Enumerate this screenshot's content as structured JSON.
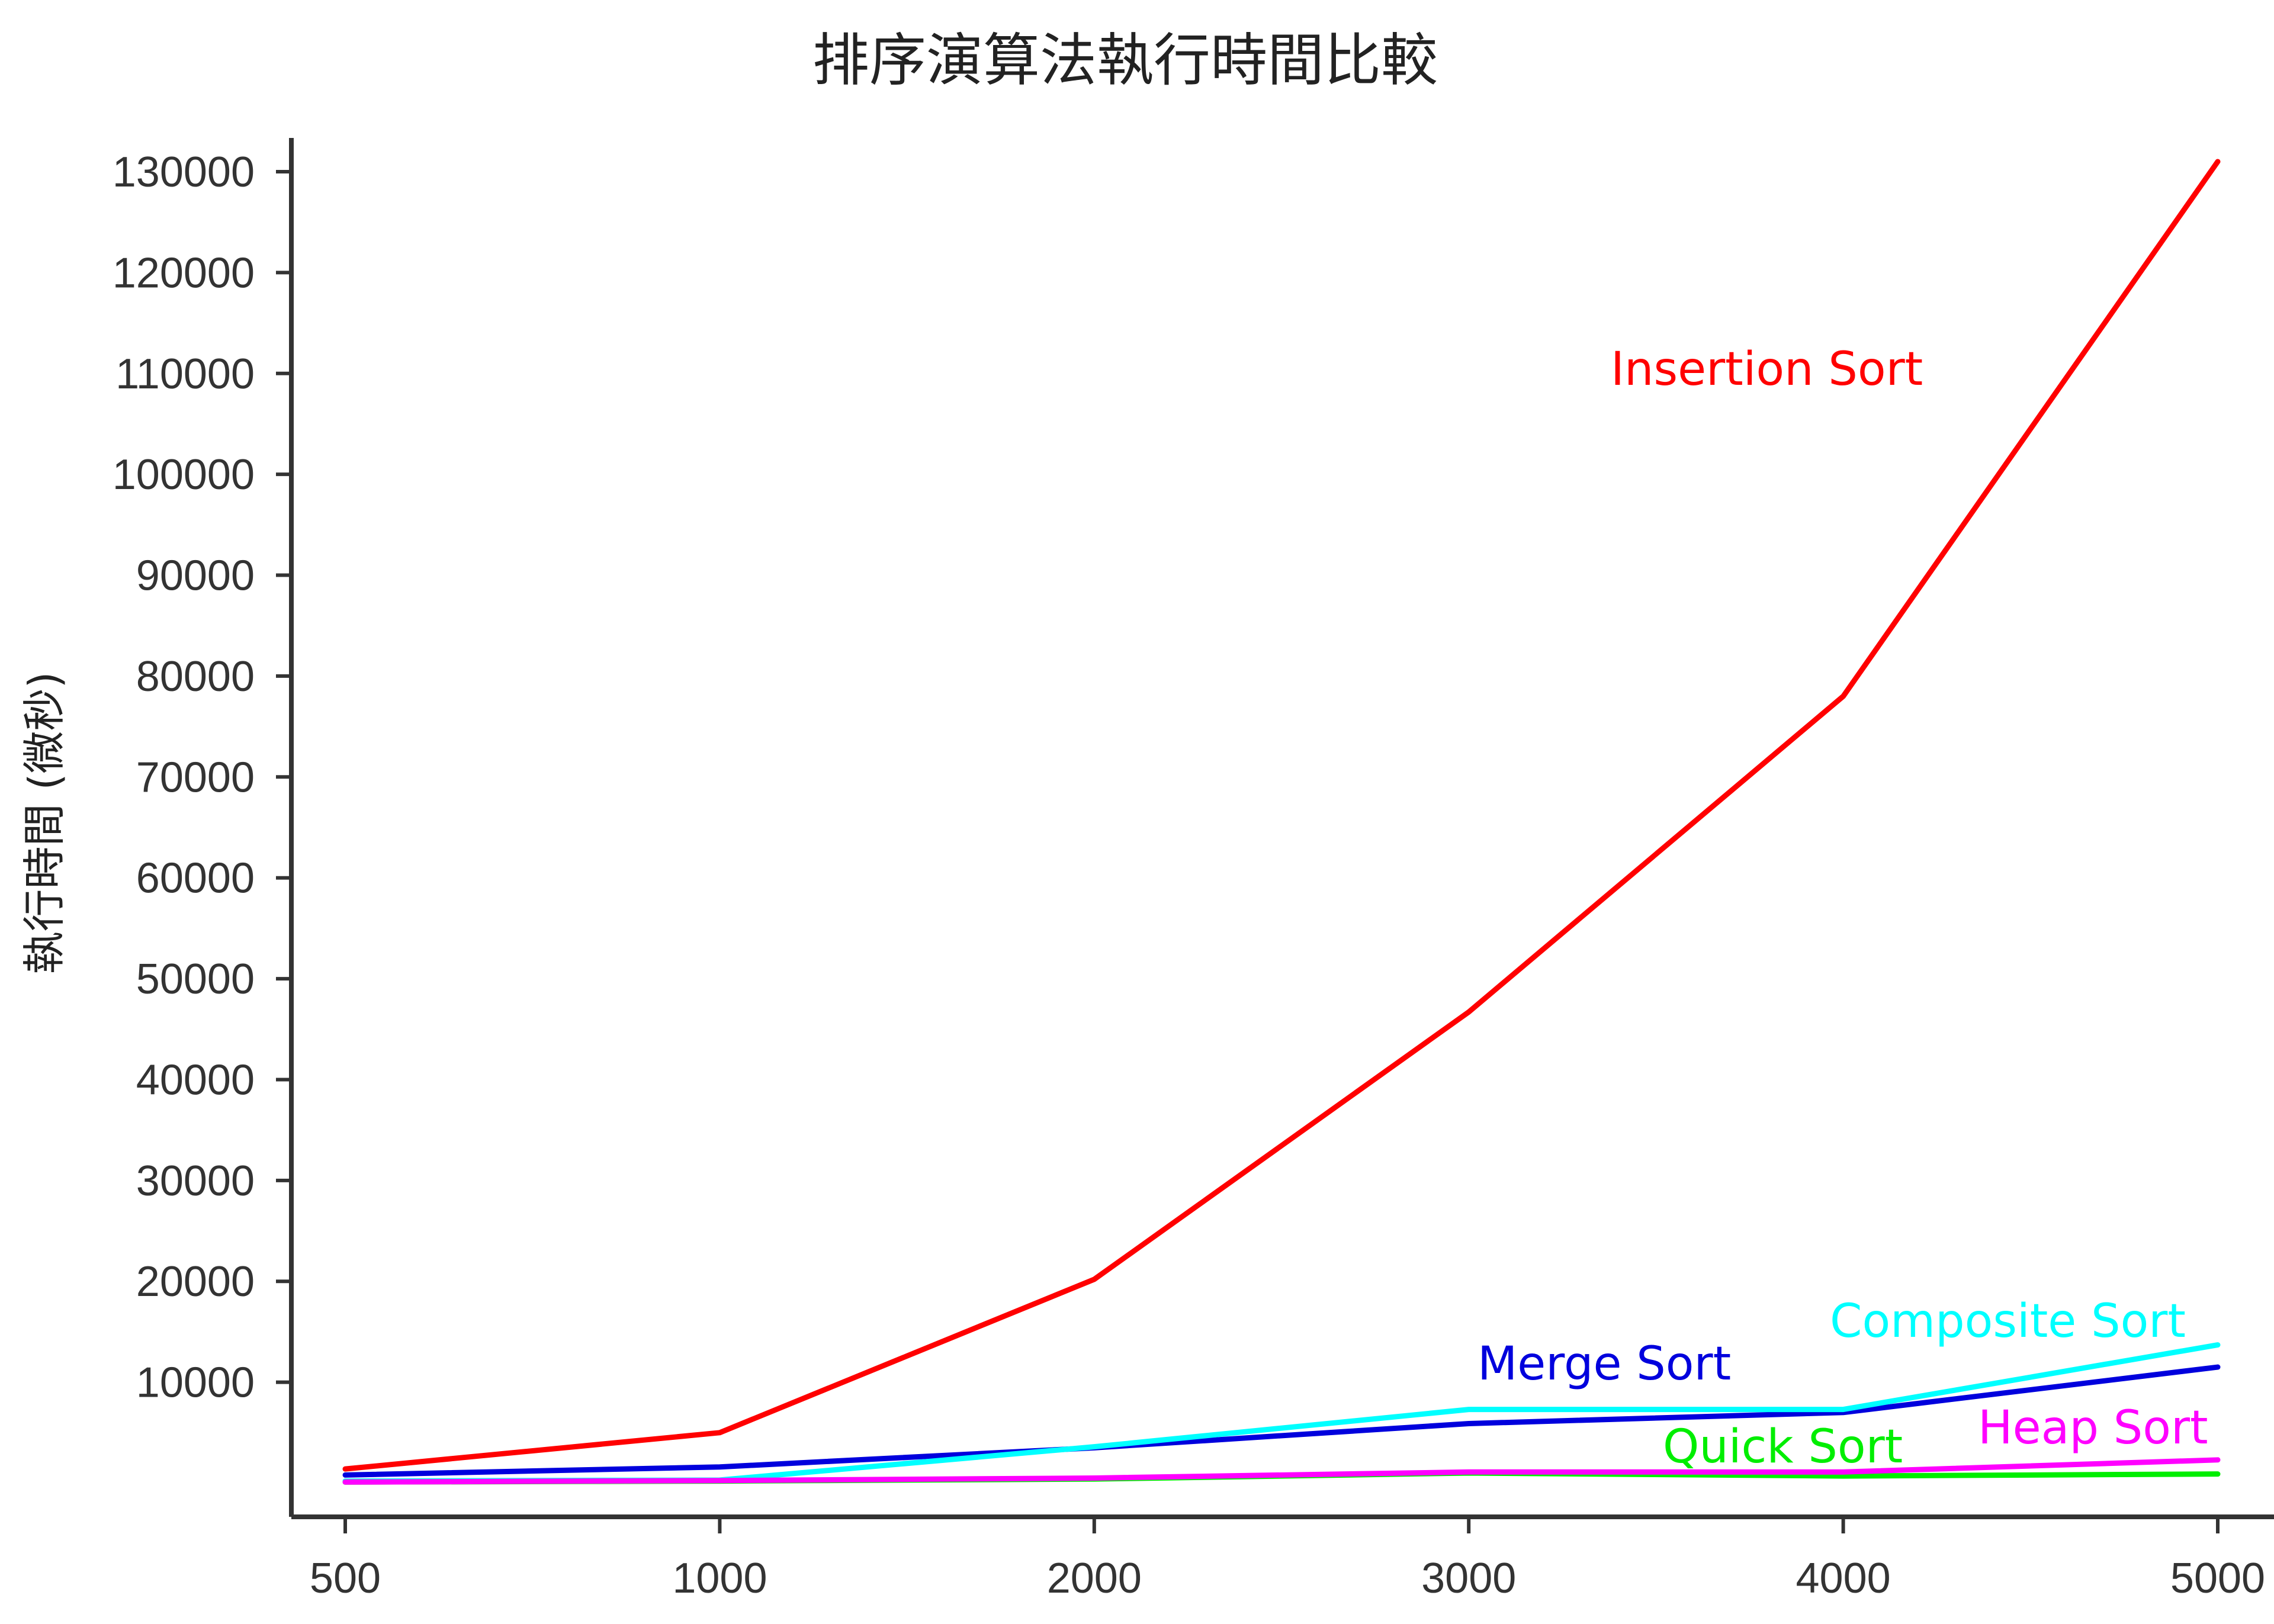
{
  "chart_data": {
    "type": "line",
    "title": "排序演算法執行時間比較",
    "xlabel": "",
    "ylabel": "執行時間 (微秒)",
    "categories": [
      "500",
      "1000",
      "2000",
      "3000",
      "4000",
      "5000"
    ],
    "y_ticks": [
      10000,
      20000,
      30000,
      40000,
      50000,
      60000,
      70000,
      80000,
      90000,
      100000,
      110000,
      120000,
      130000
    ],
    "ylim": [
      0,
      130000
    ],
    "grid": false,
    "legend": "inline labels",
    "series": [
      {
        "name": "Insertion Sort",
        "color": "#ff0000",
        "values": [
          1400,
          5000,
          20200,
          46700,
          78000,
          131000
        ]
      },
      {
        "name": "Merge Sort",
        "color": "#0000dd",
        "values": [
          800,
          1600,
          3500,
          5900,
          7000,
          11500
        ]
      },
      {
        "name": "Composite Sort",
        "color": "#00ffff",
        "values": [
          200,
          300,
          3600,
          7300,
          7300,
          13700
        ]
      },
      {
        "name": "Quick Sort",
        "color": "#00ee00",
        "values": [
          100,
          200,
          400,
          1000,
          700,
          900
        ]
      },
      {
        "name": "Heap Sort",
        "color": "#ff00ff",
        "values": [
          100,
          250,
          500,
          1100,
          1100,
          2300
        ]
      }
    ]
  }
}
